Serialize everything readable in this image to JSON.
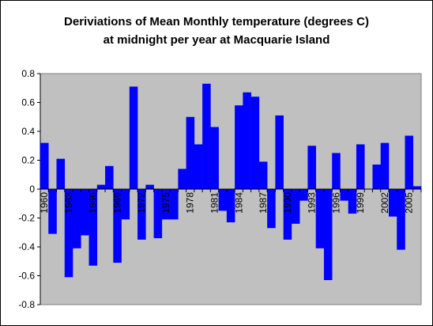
{
  "chart_data": {
    "type": "bar",
    "title": "Deriviations of Mean Monthly temperature (degrees C) at midnight per year at Macquarie Island",
    "title_lines": [
      "Deriviations of Mean Monthly temperature (degrees C)",
      "at midnight per year at Macquarie Island"
    ],
    "xlabel": "",
    "ylabel": "",
    "ylim": [
      -0.8,
      0.8
    ],
    "yticks": [
      -0.8,
      -0.6,
      -0.4,
      -0.2,
      0,
      0.2,
      0.4,
      0.6,
      0.8
    ],
    "ytick_labels": [
      "-0.8",
      "-0.6",
      "-0.4",
      "-0.2",
      "0",
      "0.2",
      "0.4",
      "0.6",
      "0.8"
    ],
    "grid": false,
    "legend": "none",
    "plot_background": "#c0c0c0",
    "bar_color": "#0000ff",
    "categories": [
      1960,
      1961,
      1962,
      1963,
      1964,
      1965,
      1966,
      1967,
      1968,
      1969,
      1970,
      1971,
      1972,
      1973,
      1974,
      1975,
      1976,
      1977,
      1978,
      1979,
      1980,
      1981,
      1982,
      1983,
      1984,
      1985,
      1986,
      1987,
      1988,
      1989,
      1990,
      1991,
      1992,
      1993,
      1994,
      1995,
      1996,
      1997,
      1998,
      1999,
      2000,
      2001,
      2002,
      2003,
      2004,
      2005,
      2006
    ],
    "values": [
      0.32,
      -0.31,
      0.21,
      -0.61,
      -0.41,
      -0.32,
      -0.53,
      0.03,
      0.16,
      -0.51,
      -0.21,
      0.71,
      -0.35,
      0.03,
      -0.34,
      -0.21,
      -0.21,
      0.14,
      0.5,
      0.31,
      0.73,
      0.43,
      -0.15,
      -0.23,
      0.58,
      0.67,
      0.64,
      0.19,
      -0.27,
      0.51,
      -0.35,
      -0.24,
      -0.08,
      0.3,
      -0.41,
      -0.63,
      0.25,
      -0.08,
      -0.17,
      0.31,
      0.0,
      0.17,
      0.32,
      -0.19,
      -0.42,
      0.37,
      0.02
    ],
    "x_tick_labels": [
      "1960",
      "1963",
      "1966",
      "1969",
      "1972",
      "1975",
      "1978",
      "1981",
      "1984",
      "1987",
      "1990",
      "1993",
      "1996",
      "1999",
      "2002",
      "2005"
    ]
  }
}
